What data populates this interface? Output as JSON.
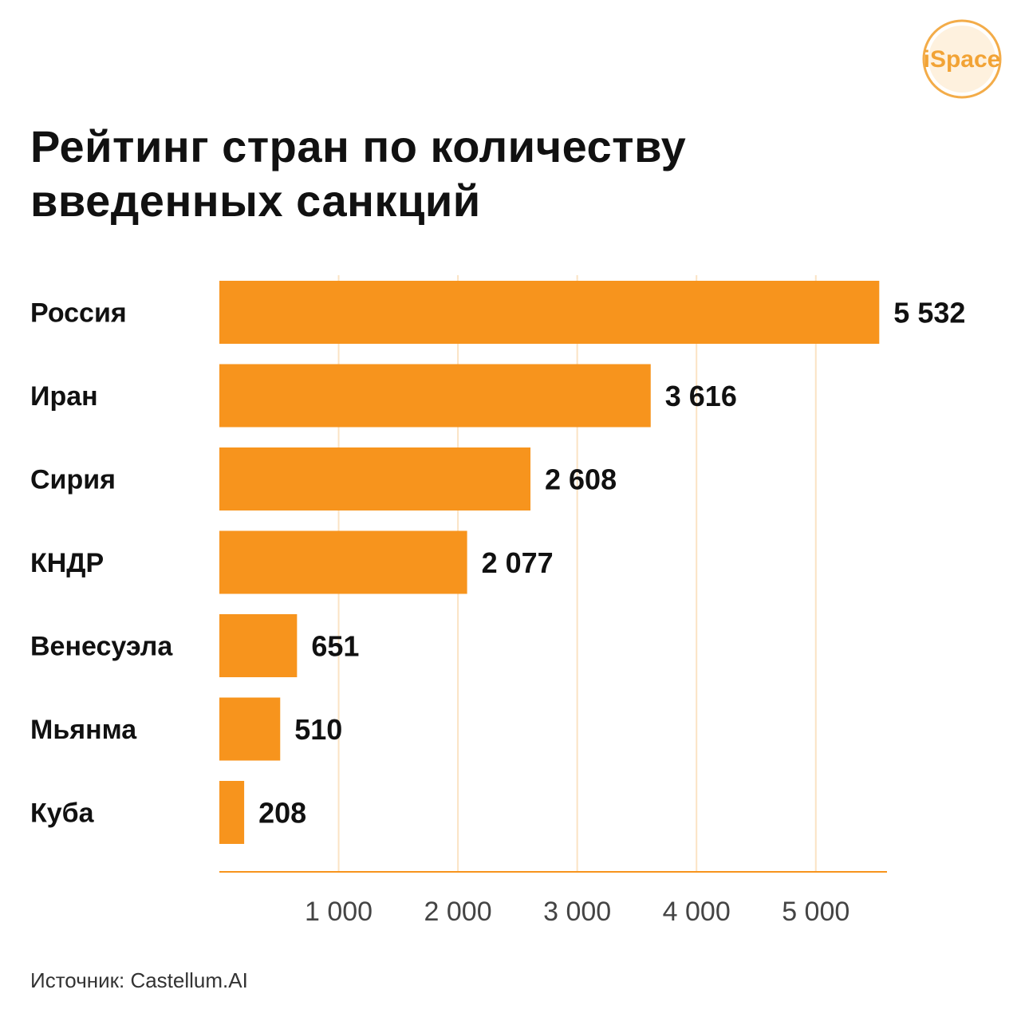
{
  "logo": {
    "text": "iSpace",
    "color": "#f2a335"
  },
  "chart_data": {
    "type": "bar",
    "orientation": "horizontal",
    "title": "Рейтинг стран по количеству введенных санкций",
    "categories": [
      "Россия",
      "Иран",
      "Сирия",
      "КНДР",
      "Венесуэла",
      "Мьянма",
      "Куба"
    ],
    "values": [
      5532,
      3616,
      2608,
      2077,
      651,
      510,
      208
    ],
    "value_labels": [
      "5 532",
      "3 616",
      "2 608",
      "2 077",
      "651",
      "510",
      "208"
    ],
    "xticks": [
      1000,
      2000,
      3000,
      4000,
      5000
    ],
    "xtick_labels": [
      "1 000",
      "2 000",
      "3 000",
      "4 000",
      "5 000"
    ],
    "xlabel": "",
    "ylabel": "",
    "grid": "vertical",
    "bar_color": "#f7941d",
    "grid_color": "#fbe3c4",
    "axis_color": "#f7941d"
  },
  "source": "Источник: Castellum.AI"
}
